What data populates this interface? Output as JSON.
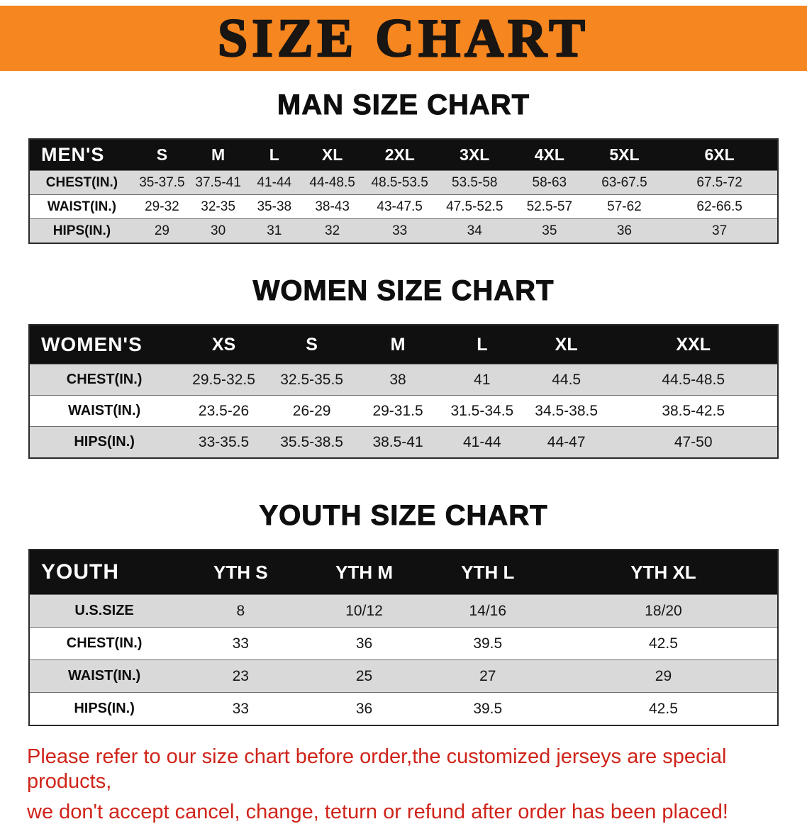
{
  "banner": {
    "title": "SIZE CHART",
    "bg_color": "#f6861f"
  },
  "sections": [
    {
      "heading": "MAN SIZE CHART",
      "table": {
        "header": [
          "MEN'S",
          "S",
          "M",
          "L",
          "XL",
          "2XL",
          "3XL",
          "4XL",
          "5XL",
          "6XL"
        ],
        "rows": [
          [
            "CHEST(IN.)",
            "35-37.5",
            "37.5-41",
            "41-44",
            "44-48.5",
            "48.5-53.5",
            "53.5-58",
            "58-63",
            "63-67.5",
            "67.5-72"
          ],
          [
            "WAIST(IN.)",
            "29-32",
            "32-35",
            "35-38",
            "38-43",
            "43-47.5",
            "47.5-52.5",
            "52.5-57",
            "57-62",
            "62-66.5"
          ],
          [
            "HIPS(IN.)",
            "29",
            "30",
            "31",
            "32",
            "33",
            "34",
            "35",
            "36",
            "37"
          ]
        ]
      }
    },
    {
      "heading": "WOMEN SIZE CHART",
      "table": {
        "header": [
          "WOMEN'S",
          "XS",
          "S",
          "M",
          "L",
          "XL",
          "XXL"
        ],
        "rows": [
          [
            "CHEST(IN.)",
            "29.5-32.5",
            "32.5-35.5",
            "38",
            "41",
            "44.5",
            "44.5-48.5"
          ],
          [
            "WAIST(IN.)",
            "23.5-26",
            "26-29",
            "29-31.5",
            "31.5-34.5",
            "34.5-38.5",
            "38.5-42.5"
          ],
          [
            "HIPS(IN.)",
            "33-35.5",
            "35.5-38.5",
            "38.5-41",
            "41-44",
            "44-47",
            "47-50"
          ]
        ]
      }
    },
    {
      "heading": "YOUTH SIZE CHART",
      "table": {
        "header": [
          "YOUTH",
          "YTH S",
          "YTH M",
          "YTH L",
          "YTH XL"
        ],
        "rows": [
          [
            "U.S.SIZE",
            "8",
            "10/12",
            "14/16",
            "18/20"
          ],
          [
            "CHEST(IN.)",
            "33",
            "36",
            "39.5",
            "42.5"
          ],
          [
            "WAIST(IN.)",
            "23",
            "25",
            "27",
            "29"
          ],
          [
            "HIPS(IN.)",
            "33",
            "36",
            "39.5",
            "42.5"
          ]
        ]
      }
    }
  ],
  "disclaimer": {
    "line1": "Please refer to our size chart before order,the customized jerseys are special products,",
    "line2": "we don't accept cancel, change, teturn or refund after order has been placed!",
    "color": "#cf241a"
  }
}
